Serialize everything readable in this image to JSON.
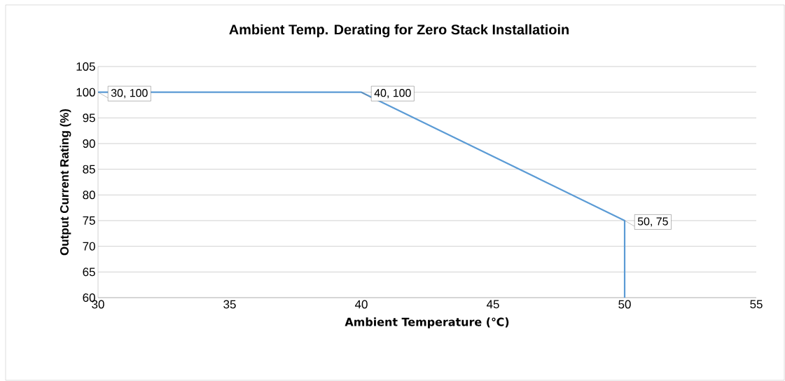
{
  "chart_data": {
    "type": "line",
    "title": "Ambient  Temp. Derating for Zero Stack Installatioin",
    "xlabel": "Ambient Temperature (℃)",
    "ylabel": "Output Current Rating (%)",
    "x": [
      30,
      40,
      50,
      50
    ],
    "values": [
      100,
      100,
      75,
      60
    ],
    "color": "#5b9bd5",
    "xlim": [
      30,
      55
    ],
    "ylim": [
      60,
      105
    ],
    "xticks": [
      30,
      35,
      40,
      45,
      50,
      55
    ],
    "yticks": [
      60,
      65,
      70,
      75,
      80,
      85,
      90,
      95,
      100,
      105
    ],
    "grid": "y",
    "annotations": [
      {
        "text": "30, 100",
        "x": 30,
        "y": 100
      },
      {
        "text": "40, 100",
        "x": 40,
        "y": 100
      },
      {
        "text": "50, 75",
        "x": 50,
        "y": 75
      }
    ]
  }
}
